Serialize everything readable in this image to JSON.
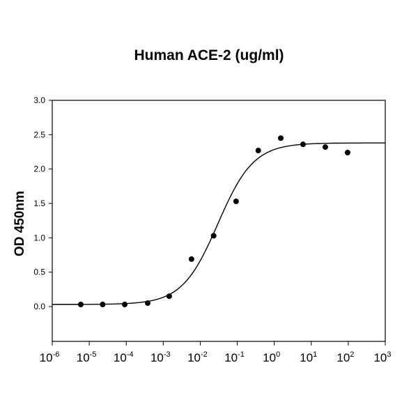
{
  "chart_data": {
    "type": "scatter",
    "title": "Human ACE-2 (ug/ml)",
    "xlabel": "",
    "ylabel": "OD 450nm",
    "xscale": "log",
    "xlim": [
      1e-06,
      1000
    ],
    "ylim": [
      -0.35,
      3.0
    ],
    "x_tick_labels": [
      "10^-6",
      "10^-5",
      "10^-4",
      "10^-3",
      "10^-2",
      "10^-1",
      "10^0",
      "10^1",
      "10^2",
      "10^3"
    ],
    "y_tick_labels": [
      "0.0",
      "0.5",
      "1.0",
      "1.5",
      "2.0",
      "2.5",
      "3.0"
    ],
    "grid": false,
    "legend": null,
    "series": [
      {
        "name": "Data points",
        "style": "markers",
        "x": [
          5.9e-06,
          2.3e-05,
          9.1e-05,
          0.00038,
          0.00145,
          0.0058,
          0.023,
          0.093,
          0.37,
          1.5,
          6.0,
          24,
          96
        ],
        "y": [
          0.03,
          0.03,
          0.03,
          0.05,
          0.15,
          0.69,
          1.03,
          1.53,
          2.27,
          2.45,
          2.36,
          2.32,
          2.24
        ]
      },
      {
        "name": "4PL fit curve",
        "style": "line",
        "model": "four-parameter logistic",
        "params": {
          "bottom": 0.03,
          "top": 2.38,
          "ec50": 0.03,
          "hill": 0.9
        }
      }
    ]
  },
  "title": "Human ACE-2 (ug/ml)",
  "ylabel": "OD 450nm"
}
